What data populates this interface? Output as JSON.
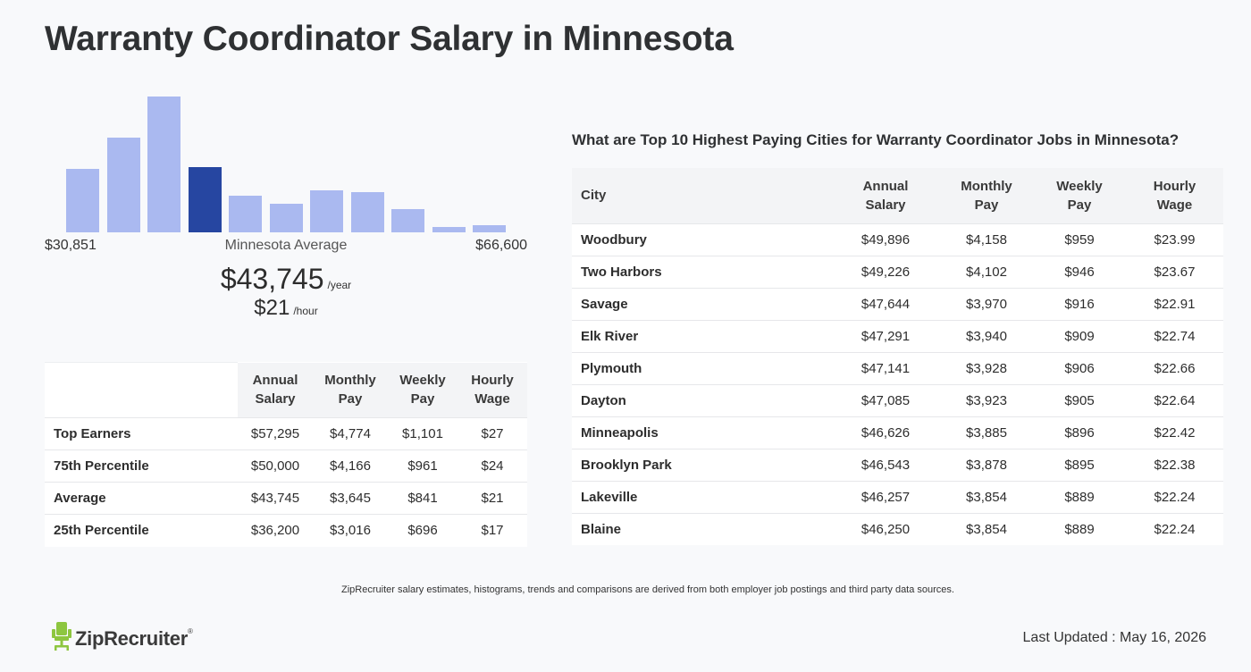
{
  "page": {
    "title": "Warranty Coordinator Salary in Minnesota"
  },
  "histogram": {
    "min_label": "$30,851",
    "max_label": "$66,600",
    "avg_label": "Minnesota Average",
    "avg_year": "$43,745",
    "avg_year_unit": "/year",
    "avg_hour": "$21",
    "avg_hour_unit": "/hour",
    "bar_color": "#aab9f0",
    "active_color": "#2646a1"
  },
  "chart_data": {
    "type": "bar",
    "categories": [
      "1",
      "2",
      "3",
      "4",
      "5",
      "6",
      "7",
      "8",
      "9",
      "10",
      "11"
    ],
    "values": [
      71,
      106,
      152,
      73,
      41,
      32,
      47,
      45,
      26,
      6,
      8
    ],
    "highlight_index": 3,
    "xlim_labels": [
      "$30,851",
      "$66,600"
    ],
    "title": "",
    "xlabel": "",
    "ylabel": ""
  },
  "percentiles": {
    "headers": [
      [
        "Annual",
        "Salary"
      ],
      [
        "Monthly",
        "Pay"
      ],
      [
        "Weekly",
        "Pay"
      ],
      [
        "Hourly",
        "Wage"
      ]
    ],
    "rows": [
      {
        "label": "Top Earners",
        "annual": "$57,295",
        "monthly": "$4,774",
        "weekly": "$1,101",
        "hourly": "$27"
      },
      {
        "label": "75th Percentile",
        "annual": "$50,000",
        "monthly": "$4,166",
        "weekly": "$961",
        "hourly": "$24"
      },
      {
        "label": "Average",
        "annual": "$43,745",
        "monthly": "$3,645",
        "weekly": "$841",
        "hourly": "$21"
      },
      {
        "label": "25th Percentile",
        "annual": "$36,200",
        "monthly": "$3,016",
        "weekly": "$696",
        "hourly": "$17"
      }
    ]
  },
  "cities": {
    "heading": "What are Top 10 Highest Paying Cities for Warranty Coordinator Jobs in Minnesota?",
    "city_header": "City",
    "headers": [
      [
        "Annual",
        "Salary"
      ],
      [
        "Monthly",
        "Pay"
      ],
      [
        "Weekly",
        "Pay"
      ],
      [
        "Hourly",
        "Wage"
      ]
    ],
    "rows": [
      {
        "city": "Woodbury",
        "annual": "$49,896",
        "monthly": "$4,158",
        "weekly": "$959",
        "hourly": "$23.99"
      },
      {
        "city": "Two Harbors",
        "annual": "$49,226",
        "monthly": "$4,102",
        "weekly": "$946",
        "hourly": "$23.67"
      },
      {
        "city": "Savage",
        "annual": "$47,644",
        "monthly": "$3,970",
        "weekly": "$916",
        "hourly": "$22.91"
      },
      {
        "city": "Elk River",
        "annual": "$47,291",
        "monthly": "$3,940",
        "weekly": "$909",
        "hourly": "$22.74"
      },
      {
        "city": "Plymouth",
        "annual": "$47,141",
        "monthly": "$3,928",
        "weekly": "$906",
        "hourly": "$22.66"
      },
      {
        "city": "Dayton",
        "annual": "$47,085",
        "monthly": "$3,923",
        "weekly": "$905",
        "hourly": "$22.64"
      },
      {
        "city": "Minneapolis",
        "annual": "$46,626",
        "monthly": "$3,885",
        "weekly": "$896",
        "hourly": "$22.42"
      },
      {
        "city": "Brooklyn Park",
        "annual": "$46,543",
        "monthly": "$3,878",
        "weekly": "$895",
        "hourly": "$22.38"
      },
      {
        "city": "Lakeville",
        "annual": "$46,257",
        "monthly": "$3,854",
        "weekly": "$889",
        "hourly": "$22.24"
      },
      {
        "city": "Blaine",
        "annual": "$46,250",
        "monthly": "$3,854",
        "weekly": "$889",
        "hourly": "$22.24"
      }
    ]
  },
  "footer": {
    "note": "ZipRecruiter salary estimates, histograms, trends and comparisons are derived from both employer job postings and third party data sources.",
    "logo_text": "ZipRecruiter",
    "logo_mark": "®",
    "logo_color": "#8dc63f",
    "last_updated": "Last Updated : May 16, 2026"
  }
}
